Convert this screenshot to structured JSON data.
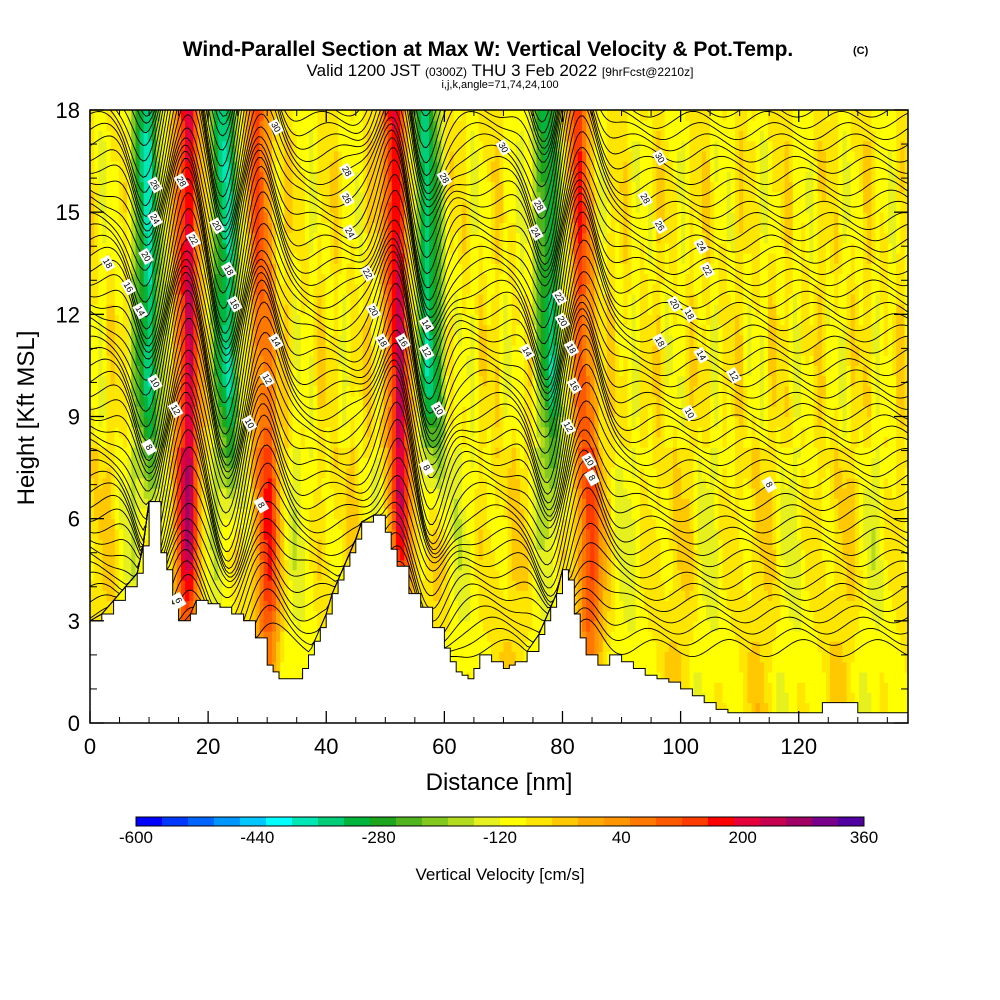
{
  "title": "Wind-Parallel Section at Max W: Vertical Velocity & Pot.Temp.",
  "copyright_mark": "(C)",
  "subtitle_main": "Valid 1200 JST",
  "subtitle_utc": "(0300Z)",
  "subtitle_date": "THU 3 Feb 2022",
  "subtitle_fcst": "[9hrFcst@2210z]",
  "params_line": "i,j,k,angle=71,74,24,100",
  "chart_data": {
    "type": "heatmap",
    "xlabel": "Distance [nm]",
    "ylabel": "Height [Kft MSL]",
    "xlim": [
      0,
      138.5
    ],
    "ylim": [
      0,
      18
    ],
    "x_ticks": [
      "0",
      "20",
      "40",
      "60",
      "80",
      "100",
      "120"
    ],
    "y_ticks": [
      "0",
      "3",
      "6",
      "9",
      "12",
      "15",
      "18"
    ],
    "colorbar": {
      "label": "Vertical Velocity [cm/s]",
      "tick_labels": [
        "-600",
        "-440",
        "-280",
        "-120",
        "40",
        "200",
        "360"
      ],
      "min": -600,
      "max": 360,
      "step": 40,
      "colors": [
        "#0000ff",
        "#0038ff",
        "#0064ff",
        "#0096ff",
        "#00c8ff",
        "#00ffff",
        "#00e6b4",
        "#00cd78",
        "#00b43c",
        "#1ea51e",
        "#50b41e",
        "#82c81e",
        "#b4dc1e",
        "#e6f01e",
        "#ffff00",
        "#ffe600",
        "#ffc800",
        "#ffaa00",
        "#ff9600",
        "#ff7800",
        "#ff5a00",
        "#ff3c00",
        "#ff0000",
        "#e6003c",
        "#c80050",
        "#a00064",
        "#78008c",
        "#5000a0"
      ]
    },
    "updrafts": [
      {
        "center_nm": 16.5,
        "top_nm": 16.5,
        "max_cm_s": 360
      },
      {
        "center_nm": 30,
        "top_nm": 28.5,
        "max_cm_s": 240
      },
      {
        "center_nm": 52.5,
        "top_nm": 51.5,
        "max_cm_s": 360
      },
      {
        "center_nm": 84.5,
        "top_nm": 82.5,
        "max_cm_s": 240
      }
    ],
    "downdrafts": [
      {
        "center_nm": 10.5,
        "top_nm": 9.5,
        "min_cm_s": -300
      },
      {
        "center_nm": 24,
        "top_nm": 22.5,
        "min_cm_s": -300
      },
      {
        "center_nm": 58.5,
        "top_nm": 56.5,
        "min_cm_s": -280
      },
      {
        "center_nm": 78.5,
        "top_nm": 77,
        "min_cm_s": -260
      }
    ],
    "terrain": {
      "x": [
        0,
        2,
        4,
        6,
        8,
        9,
        10,
        11,
        12,
        13,
        14,
        15,
        16,
        17,
        18,
        20,
        22,
        24,
        26,
        27,
        28,
        30,
        31,
        32,
        33,
        35,
        36,
        37,
        38,
        39,
        40,
        41,
        42,
        43,
        44,
        45,
        46,
        48,
        49,
        50,
        51,
        52,
        54,
        56,
        58,
        60,
        61,
        62,
        63,
        64,
        65,
        66,
        68,
        70,
        71,
        72,
        74,
        76,
        77,
        78,
        79,
        80,
        81,
        82,
        83,
        84,
        86,
        88,
        90,
        92,
        94,
        96,
        98,
        100,
        102,
        104,
        106,
        108,
        110,
        112,
        114,
        116,
        118,
        120,
        122,
        124,
        126,
        128,
        130,
        132,
        134,
        136,
        138.5
      ],
      "height_kft": [
        3.0,
        3.2,
        3.6,
        4.0,
        4.4,
        5.2,
        6.5,
        6.5,
        5.0,
        4.5,
        3.5,
        3.0,
        3.0,
        3.2,
        3.6,
        3.5,
        3.4,
        3.2,
        3.0,
        3.0,
        2.5,
        1.7,
        1.5,
        1.3,
        1.3,
        1.3,
        1.6,
        2.0,
        2.4,
        2.8,
        3.2,
        3.8,
        4.2,
        4.6,
        5.0,
        5.4,
        5.9,
        6.1,
        6.1,
        5.6,
        5.1,
        4.6,
        3.8,
        3.4,
        2.8,
        2.2,
        1.8,
        1.5,
        1.4,
        1.3,
        1.6,
        2.0,
        1.8,
        1.6,
        1.7,
        1.8,
        2.1,
        2.6,
        3.0,
        3.4,
        3.8,
        4.5,
        4.2,
        3.2,
        2.5,
        2.0,
        1.7,
        2.0,
        1.8,
        1.6,
        1.4,
        1.3,
        1.2,
        1.0,
        0.8,
        0.6,
        0.4,
        0.3,
        0.3,
        0.3,
        0.3,
        0.3,
        0.3,
        0.3,
        0.3,
        0.6,
        0.6,
        0.6,
        0.3,
        0.3,
        0.3,
        0.3,
        0.3
      ]
    },
    "isentrope_values_c": [
      6,
      8,
      10,
      12,
      14,
      16,
      18,
      20,
      22,
      24,
      26,
      28,
      30
    ],
    "isentrope_labels": [
      {
        "text": "30",
        "x": 31.5,
        "y": 17.5
      },
      {
        "text": "30",
        "x": 70,
        "y": 16.9
      },
      {
        "text": "30",
        "x": 96.5,
        "y": 16.6
      },
      {
        "text": "28",
        "x": 15.5,
        "y": 15.9
      },
      {
        "text": "28",
        "x": 43.5,
        "y": 16.2
      },
      {
        "text": "28",
        "x": 60,
        "y": 16.0
      },
      {
        "text": "28",
        "x": 76,
        "y": 15.2
      },
      {
        "text": "28",
        "x": 94,
        "y": 15.4
      },
      {
        "text": "26",
        "x": 11,
        "y": 15.8
      },
      {
        "text": "26",
        "x": 43.5,
        "y": 15.4
      },
      {
        "text": "26",
        "x": 96.5,
        "y": 14.6
      },
      {
        "text": "24",
        "x": 11,
        "y": 14.8
      },
      {
        "text": "24",
        "x": 44,
        "y": 14.4
      },
      {
        "text": "24",
        "x": 75.5,
        "y": 14.4
      },
      {
        "text": "24",
        "x": 103.5,
        "y": 14.0
      },
      {
        "text": "22",
        "x": 17.5,
        "y": 14.2
      },
      {
        "text": "22",
        "x": 47,
        "y": 13.2
      },
      {
        "text": "22",
        "x": 104.5,
        "y": 13.3
      },
      {
        "text": "22",
        "x": 79.5,
        "y": 12.5
      },
      {
        "text": "20",
        "x": 9.5,
        "y": 13.7
      },
      {
        "text": "20",
        "x": 21.5,
        "y": 14.6
      },
      {
        "text": "20",
        "x": 48,
        "y": 12.1
      },
      {
        "text": "20",
        "x": 80,
        "y": 11.8
      },
      {
        "text": "20",
        "x": 99,
        "y": 12.3
      },
      {
        "text": "18",
        "x": 3,
        "y": 13.5
      },
      {
        "text": "18",
        "x": 23.5,
        "y": 13.3
      },
      {
        "text": "18",
        "x": 49.5,
        "y": 11.2
      },
      {
        "text": "18",
        "x": 81.5,
        "y": 11.0
      },
      {
        "text": "18",
        "x": 101.5,
        "y": 12.0
      },
      {
        "text": "18",
        "x": 96.5,
        "y": 11.2
      },
      {
        "text": "16",
        "x": 6.5,
        "y": 12.8
      },
      {
        "text": "16",
        "x": 24.5,
        "y": 12.3
      },
      {
        "text": "16",
        "x": 53,
        "y": 11.2
      },
      {
        "text": "16",
        "x": 82,
        "y": 9.9
      },
      {
        "text": "14",
        "x": 8.5,
        "y": 12.1
      },
      {
        "text": "14",
        "x": 31.5,
        "y": 11.2
      },
      {
        "text": "14",
        "x": 57,
        "y": 11.7
      },
      {
        "text": "14",
        "x": 74,
        "y": 10.9
      },
      {
        "text": "14",
        "x": 103.5,
        "y": 10.8
      },
      {
        "text": "12",
        "x": 14.5,
        "y": 9.2
      },
      {
        "text": "12",
        "x": 30,
        "y": 10.1
      },
      {
        "text": "12",
        "x": 57,
        "y": 10.9
      },
      {
        "text": "12",
        "x": 81,
        "y": 8.7
      },
      {
        "text": "12",
        "x": 109,
        "y": 10.2
      },
      {
        "text": "10",
        "x": 11,
        "y": 10.0
      },
      {
        "text": "10",
        "x": 27,
        "y": 8.8
      },
      {
        "text": "10",
        "x": 59,
        "y": 9.2
      },
      {
        "text": "10",
        "x": 84.5,
        "y": 7.7
      },
      {
        "text": "10",
        "x": 101.5,
        "y": 9.1
      },
      {
        "text": "8",
        "x": 10,
        "y": 8.1
      },
      {
        "text": "8",
        "x": 29,
        "y": 6.4
      },
      {
        "text": "8",
        "x": 57,
        "y": 7.5
      },
      {
        "text": "8",
        "x": 85,
        "y": 7.2
      },
      {
        "text": "8",
        "x": 115,
        "y": 7.0
      },
      {
        "text": "6",
        "x": 15,
        "y": 3.6
      }
    ]
  }
}
